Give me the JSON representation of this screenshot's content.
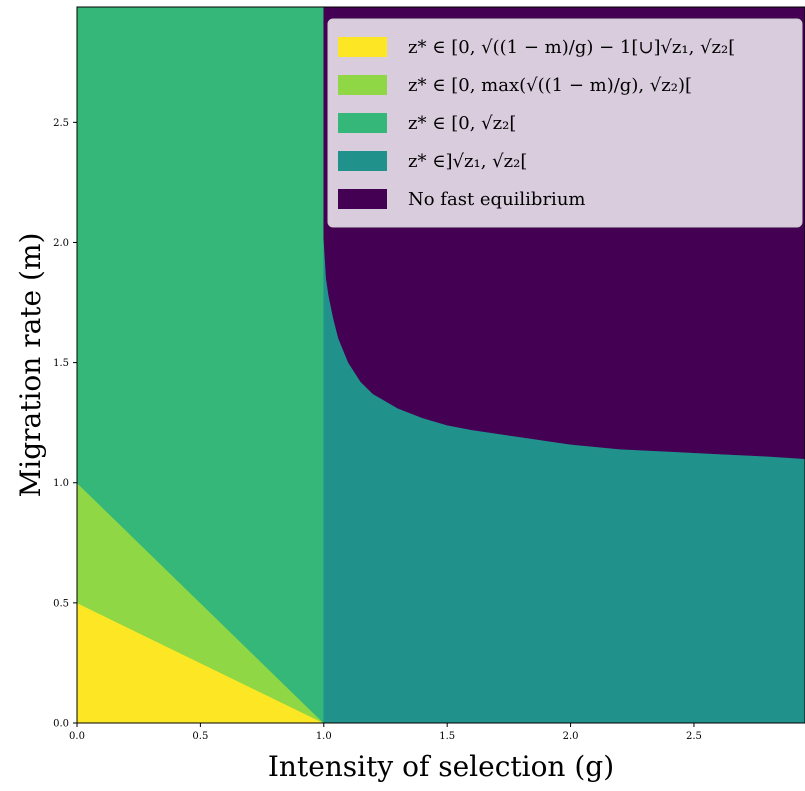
{
  "chart_data": {
    "type": "area",
    "title": "",
    "xlabel": "Intensity of selection (g)",
    "ylabel": "Migration rate (m)",
    "xlim": [
      0,
      2.95
    ],
    "ylim": [
      0,
      2.98
    ],
    "x_ticks": [
      "0.0",
      "0.5",
      "1.0",
      "1.5",
      "2.0",
      "2.5"
    ],
    "y_ticks": [
      "0.0",
      "0.5",
      "1.0",
      "1.5",
      "2.0",
      "2.5"
    ],
    "legend_position": "top-right",
    "grid": false,
    "series": [
      {
        "name": "z* ∈ [0, √((1 − m)/g) − 1[∪]√z₁, √z₂[",
        "color": "#fde725",
        "region": "below m = 0.5·(1 − g) for 0 ≤ g ≤ 1",
        "polygon": [
          [
            0,
            0
          ],
          [
            0,
            0.5
          ],
          [
            1,
            0
          ]
        ]
      },
      {
        "name": "z* ∈ [0, max(√((1 − m)/g), √z₂)[",
        "color": "#8fd744",
        "region": "between m = 0.5·(1 − g) and m = 1 − g for 0 ≤ g ≤ 1",
        "polygon": [
          [
            0,
            0.5
          ],
          [
            0,
            1
          ],
          [
            1,
            0
          ]
        ]
      },
      {
        "name": "z* ∈ [0, √z₂[",
        "color": "#35b779",
        "region": "above m = 1 − g for 0 ≤ g ≤ 1",
        "polygon": [
          [
            0,
            1
          ],
          [
            0,
            2.98
          ],
          [
            1,
            2.98
          ],
          [
            1,
            0
          ]
        ]
      },
      {
        "name": "z* ∈]√z₁, √z₂[",
        "color": "#21918c",
        "region": "g ≥ 1 below the boundary curve",
        "polygon": [
          [
            1,
            0
          ],
          [
            2.95,
            0
          ],
          [
            2.95,
            1.1
          ],
          [
            1,
            2.02
          ]
        ]
      },
      {
        "name": "No fast equilibrium",
        "color": "#440154",
        "region": "g ≥ 1 above the boundary curve",
        "polygon": [
          [
            1,
            2.98
          ],
          [
            2.95,
            2.98
          ],
          [
            2.95,
            1.1
          ],
          [
            1,
            2.02
          ]
        ]
      }
    ],
    "boundary_curve": {
      "description": "separates the two regions for g ≥ 1",
      "x": [
        1.0,
        1.01,
        1.02,
        1.04,
        1.06,
        1.1,
        1.15,
        1.2,
        1.3,
        1.4,
        1.5,
        1.6,
        1.8,
        2.0,
        2.2,
        2.4,
        2.6,
        2.8,
        2.95
      ],
      "y": [
        2.02,
        1.85,
        1.78,
        1.68,
        1.6,
        1.5,
        1.42,
        1.37,
        1.31,
        1.27,
        1.24,
        1.22,
        1.19,
        1.16,
        1.14,
        1.13,
        1.12,
        1.11,
        1.1
      ]
    }
  }
}
